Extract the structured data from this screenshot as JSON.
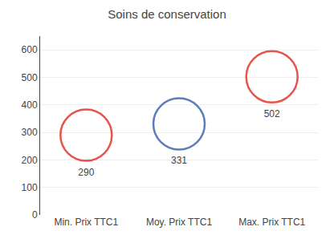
{
  "chart_data": {
    "type": "scatter",
    "title": "Soins de conservation",
    "categories": [
      "Min. Prix TTC1",
      "Moy. Prix TTC1",
      "Max. Prix TTC1"
    ],
    "values": [
      290,
      331,
      502
    ],
    "colors": [
      "#e8534a",
      "#5b7dbe",
      "#e8534a"
    ],
    "marker": "circle",
    "ylim": [
      0,
      650
    ],
    "yticks": [
      0,
      100,
      200,
      300,
      400,
      500,
      600
    ],
    "grid": true,
    "data_labels": true
  }
}
